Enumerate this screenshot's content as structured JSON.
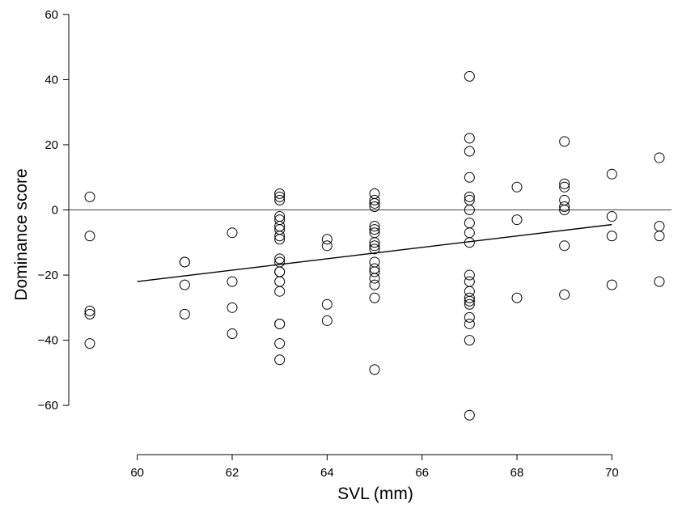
{
  "chart_data": {
    "type": "scatter",
    "title": "",
    "xlabel": "SVL (mm)",
    "ylabel": "Dominance score",
    "xlim": [
      58.6,
      71.6
    ],
    "ylim": [
      -66,
      61
    ],
    "x_ticks": [
      60,
      62,
      64,
      66,
      68,
      70
    ],
    "y_ticks": [
      -60,
      -40,
      -20,
      0,
      20,
      40,
      60
    ],
    "x_tick_labels": [
      "60",
      "62",
      "64",
      "66",
      "68",
      "70"
    ],
    "y_tick_labels": [
      "−60",
      "−40",
      "−20",
      "0",
      "20",
      "40",
      "60"
    ],
    "grid": false,
    "marker": "open-circle",
    "reference_line_y": 0,
    "trendline": {
      "x": [
        60,
        70
      ],
      "y": [
        -22,
        -4.5
      ]
    },
    "points": [
      [
        59,
        4
      ],
      [
        59,
        -8
      ],
      [
        59,
        -31
      ],
      [
        59,
        -32
      ],
      [
        59,
        -41
      ],
      [
        61,
        -16
      ],
      [
        61,
        -16
      ],
      [
        61,
        -23
      ],
      [
        61,
        -32
      ],
      [
        62,
        -7
      ],
      [
        62,
        -22
      ],
      [
        62,
        -30
      ],
      [
        62,
        -38
      ],
      [
        63,
        5
      ],
      [
        63,
        4
      ],
      [
        63,
        3
      ],
      [
        63,
        -2
      ],
      [
        63,
        -3
      ],
      [
        63,
        -5
      ],
      [
        63,
        -6
      ],
      [
        63,
        -8
      ],
      [
        63,
        -9
      ],
      [
        63,
        -15
      ],
      [
        63,
        -16
      ],
      [
        63,
        -19
      ],
      [
        63,
        -19
      ],
      [
        63,
        -22
      ],
      [
        63,
        -25
      ],
      [
        63,
        -35
      ],
      [
        63,
        -35
      ],
      [
        63,
        -41
      ],
      [
        63,
        -46
      ],
      [
        64,
        -9
      ],
      [
        64,
        -11
      ],
      [
        64,
        -29
      ],
      [
        64,
        -34
      ],
      [
        65,
        5
      ],
      [
        65,
        3
      ],
      [
        65,
        2
      ],
      [
        65,
        1
      ],
      [
        65,
        -5
      ],
      [
        65,
        -6
      ],
      [
        65,
        -7
      ],
      [
        65,
        -10
      ],
      [
        65,
        -11
      ],
      [
        65,
        -12
      ],
      [
        65,
        -16
      ],
      [
        65,
        -18
      ],
      [
        65,
        -19
      ],
      [
        65,
        -21
      ],
      [
        65,
        -23
      ],
      [
        65,
        -27
      ],
      [
        65,
        -49
      ],
      [
        67,
        41
      ],
      [
        67,
        22
      ],
      [
        67,
        18
      ],
      [
        67,
        10
      ],
      [
        67,
        4
      ],
      [
        67,
        3
      ],
      [
        67,
        0
      ],
      [
        67,
        -4
      ],
      [
        67,
        -7
      ],
      [
        67,
        -10
      ],
      [
        67,
        -20
      ],
      [
        67,
        -22
      ],
      [
        67,
        -25
      ],
      [
        67,
        -27
      ],
      [
        67,
        -28
      ],
      [
        67,
        -29
      ],
      [
        67,
        -33
      ],
      [
        67,
        -35
      ],
      [
        67,
        -40
      ],
      [
        67,
        -63
      ],
      [
        68,
        7
      ],
      [
        68,
        -3
      ],
      [
        68,
        -27
      ],
      [
        69,
        21
      ],
      [
        69,
        8
      ],
      [
        69,
        7
      ],
      [
        69,
        3
      ],
      [
        69,
        1
      ],
      [
        69,
        0
      ],
      [
        69,
        -11
      ],
      [
        69,
        -26
      ],
      [
        70,
        11
      ],
      [
        70,
        -2
      ],
      [
        70,
        -8
      ],
      [
        70,
        -23
      ],
      [
        71,
        16
      ],
      [
        71,
        -5
      ],
      [
        71,
        -8
      ],
      [
        71,
        -22
      ]
    ]
  }
}
